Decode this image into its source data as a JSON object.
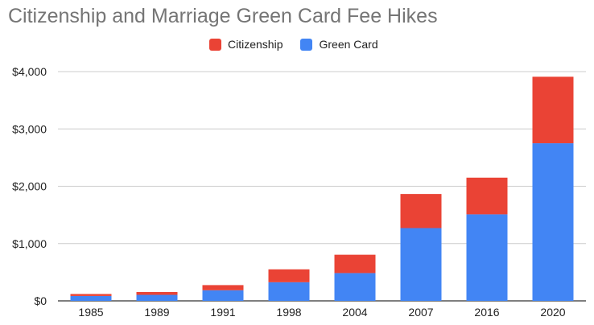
{
  "chart_data": {
    "type": "bar",
    "stacked": true,
    "title": "Citizenship and Marriage Green Card Fee Hikes",
    "categories": [
      "1985",
      "1989",
      "1991",
      "1998",
      "2004",
      "2007",
      "2016",
      "2020"
    ],
    "series": [
      {
        "name": "Green Card",
        "color": "#4285f4",
        "values": [
          85,
          105,
          185,
          325,
          485,
          1270,
          1510,
          2750
        ]
      },
      {
        "name": "Citizenship",
        "color": "#ea4335",
        "values": [
          35,
          50,
          90,
          225,
          320,
          595,
          640,
          1160
        ]
      }
    ],
    "legend_order": [
      "Citizenship",
      "Green Card"
    ],
    "ylim": [
      0,
      4000
    ],
    "yticks": [
      0,
      1000,
      2000,
      3000,
      4000
    ],
    "ytick_labels": [
      "$0",
      "$1,000",
      "$2,000",
      "$3,000",
      "$4,000"
    ],
    "xlabel": "",
    "ylabel": "",
    "grid": true,
    "legend_position": "top-center"
  }
}
